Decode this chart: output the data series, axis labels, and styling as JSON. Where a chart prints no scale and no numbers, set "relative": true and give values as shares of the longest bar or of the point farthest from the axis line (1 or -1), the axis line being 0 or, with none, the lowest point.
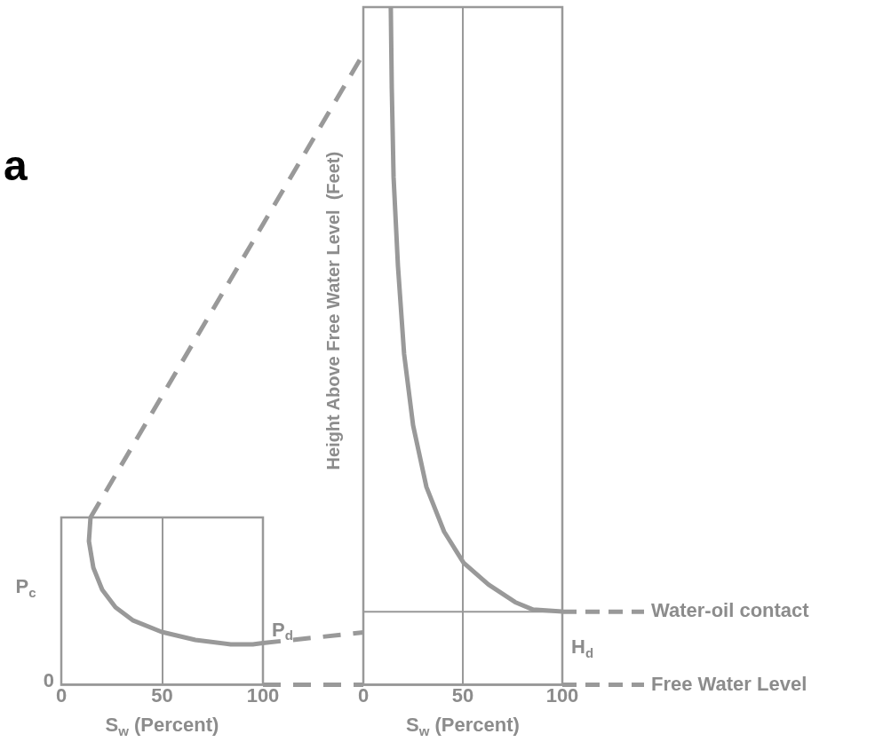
{
  "chart_data": [
    {
      "type": "line",
      "xlabel": "S$_{w}$ (Percent)",
      "ylabel": "P$_{c}$",
      "relative": true,
      "x": [
        14.5,
        13.7,
        15.9,
        20.3,
        26.9,
        35.7,
        49.8,
        66.5,
        84,
        95,
        100
      ],
      "values": [
        1,
        0.858,
        0.7,
        0.568,
        0.463,
        0.384,
        0.316,
        0.268,
        0.242,
        0.242,
        0.25
      ],
      "color": "#999999",
      "xlim": [
        0,
        100
      ],
      "xticks": [
        0,
        50,
        100
      ],
      "grid": "x",
      "annotations": [
        "a",
        "P$_{d}$",
        "0"
      ]
    },
    {
      "type": "line",
      "xlabel": "S$_{w}$ (Percent)",
      "ylabel": "Height Above Free Water Level  (Feet)",
      "relative": true,
      "x": [
        13.8,
        14.3,
        15.2,
        17.4,
        20.5,
        25,
        31.7,
        40.6,
        50.4,
        62.9,
        76.3,
        85.3,
        100
      ],
      "values": [
        1,
        0.88,
        0.749,
        0.618,
        0.488,
        0.383,
        0.292,
        0.226,
        0.18,
        0.148,
        0.122,
        0.111,
        0.108
      ],
      "color": "#999999",
      "xlim": [
        0,
        100
      ],
      "xticks": [
        0,
        50,
        100
      ],
      "grid": "x",
      "ref_lines": [
        {
          "axis": "y",
          "value": 0.108,
          "label": "Water-oil contact"
        },
        {
          "axis": "y",
          "value": 0,
          "label": "Free Water Level"
        }
      ],
      "annotations": [
        "H$_{d}$"
      ]
    }
  ]
}
